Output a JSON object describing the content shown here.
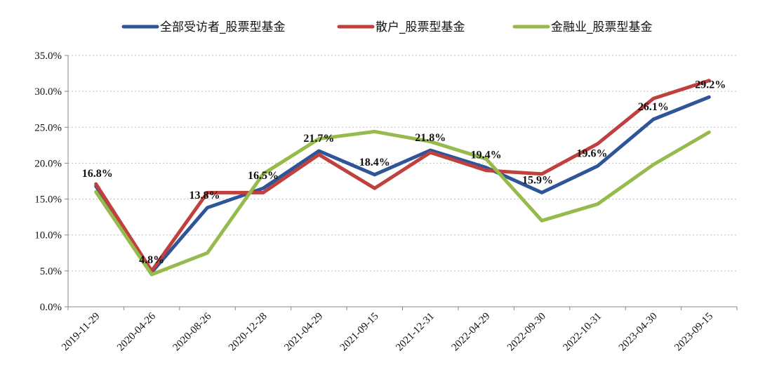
{
  "chart_data": {
    "type": "line",
    "title": "",
    "xlabel": "",
    "ylabel": "",
    "categories": [
      "2019-11-29",
      "2020-04-26",
      "2020-08-26",
      "2020-12-28",
      "2021-04-29",
      "2021-09-15",
      "2021-12-31",
      "2022-04-29",
      "2022-09-30",
      "2022-10-31",
      "2023-04-30",
      "2023-09-15"
    ],
    "ylim": [
      0,
      35
    ],
    "yticks": [
      0,
      5,
      10,
      15,
      20,
      25,
      30,
      35
    ],
    "ytick_labels": [
      "0.0%",
      "5.0%",
      "10.0%",
      "15.0%",
      "20.0%",
      "25.0%",
      "30.0%",
      "35.0%"
    ],
    "grid": true,
    "legend_position": "top",
    "series": [
      {
        "name": "全部受访者_股票型基金",
        "color": "#2E5597",
        "values": [
          16.8,
          4.8,
          13.8,
          16.5,
          21.7,
          18.4,
          21.8,
          19.4,
          15.9,
          19.6,
          26.1,
          29.2
        ]
      },
      {
        "name": "散户_股票型基金",
        "color": "#C0403D",
        "values": [
          17.1,
          5.0,
          15.9,
          15.9,
          21.2,
          16.5,
          21.5,
          19.0,
          18.5,
          22.7,
          29.0,
          31.5
        ]
      },
      {
        "name": "金融业_股票型基金",
        "color": "#96BA4C",
        "values": [
          16.0,
          4.5,
          7.5,
          18.5,
          23.4,
          24.4,
          23.0,
          20.6,
          12.0,
          14.3,
          19.8,
          24.3
        ]
      }
    ],
    "data_labels": [
      {
        "index": 0,
        "text": "16.8%"
      },
      {
        "index": 1,
        "text": "4.8%"
      },
      {
        "index": 2,
        "text": "13.8%"
      },
      {
        "index": 3,
        "text": "16.5%"
      },
      {
        "index": 4,
        "text": "21.7%"
      },
      {
        "index": 5,
        "text": "18.4%"
      },
      {
        "index": 6,
        "text": "21.8%"
      },
      {
        "index": 7,
        "text": "19.4%"
      },
      {
        "index": 8,
        "text": "15.9%"
      },
      {
        "index": 9,
        "text": "19.6%"
      },
      {
        "index": 10,
        "text": "26.1%"
      },
      {
        "index": 11,
        "text": "29.2%"
      }
    ]
  }
}
